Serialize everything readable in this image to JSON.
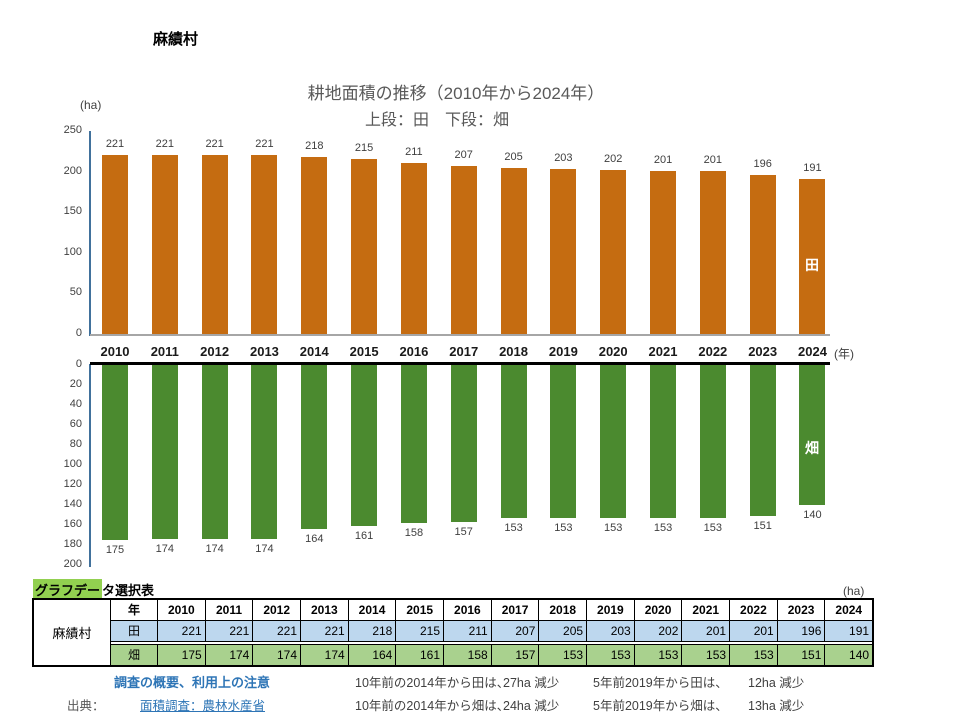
{
  "village_name": "麻績村",
  "chart": {
    "title": "耕地面積の推移（2010年から2024年）",
    "subtitle": "上段：田　下段：畑",
    "unit_label": "(ha)",
    "year_axis_label": "(年)"
  },
  "chart_data": {
    "type": "bar",
    "title": "耕地面積の推移（2010年から2024年）",
    "xlabel": "(年)",
    "ylabel": "(ha)",
    "categories": [
      "2010",
      "2011",
      "2012",
      "2013",
      "2014",
      "2015",
      "2016",
      "2017",
      "2018",
      "2019",
      "2020",
      "2021",
      "2022",
      "2023",
      "2024"
    ],
    "series": [
      {
        "name": "田",
        "values": [
          221,
          221,
          221,
          221,
          218,
          215,
          211,
          207,
          205,
          203,
          202,
          201,
          201,
          196,
          191
        ],
        "color": "#C56C11",
        "axis": {
          "ticks": [
            250,
            200,
            150,
            100,
            50,
            0
          ],
          "max": 250,
          "inverted": false
        }
      },
      {
        "name": "畑",
        "values": [
          175,
          174,
          174,
          174,
          164,
          161,
          158,
          157,
          153,
          153,
          153,
          153,
          153,
          151,
          140
        ],
        "color": "#4B8A2F",
        "axis": {
          "ticks": [
            0,
            20,
            40,
            60,
            80,
            100,
            120,
            140,
            160,
            180,
            200
          ],
          "max": 200,
          "inverted": true
        }
      }
    ],
    "legend_position": "in-bar-last",
    "grid": false
  },
  "table": {
    "caption_highlight": "グラフデー",
    "caption_rest": "タ選択表",
    "unit": "(ha)",
    "village": "麻績村",
    "col_header": "年",
    "years": [
      "2010",
      "2011",
      "2012",
      "2013",
      "2014",
      "2015",
      "2016",
      "2017",
      "2018",
      "2019",
      "2020",
      "2021",
      "2022",
      "2023",
      "2024"
    ],
    "rows": [
      {
        "label": "田",
        "values": [
          221,
          221,
          221,
          221,
          218,
          215,
          211,
          207,
          205,
          203,
          202,
          201,
          201,
          196,
          191
        ],
        "bg": "#BDD7EE"
      },
      {
        "label": "畑",
        "values": [
          175,
          174,
          174,
          174,
          164,
          161,
          158,
          157,
          153,
          153,
          153,
          153,
          153,
          151,
          140
        ],
        "bg": "#A9D18E"
      }
    ]
  },
  "footer": {
    "survey_link": "調査の概要、利用上の注意",
    "source_label": "出典：",
    "source_link": "面積調査：農林水産省",
    "notes": [
      [
        "10年前の2014年から田は、",
        "27ha 減少",
        "5年前2019年から田は、",
        "12ha 減少"
      ],
      [
        "10年前の2014年から畑は、",
        "24ha 減少",
        "5年前2019年から畑は、",
        "13ha 減少"
      ]
    ]
  },
  "colors": {
    "paddy_bar": "#C56C11",
    "field_bar": "#4B8A2F",
    "axis_line": "#41719C",
    "baseline_gray": "#A6A6A6",
    "baseline_black": "#000000",
    "link_blue": "#2E75B6",
    "title_gray": "#595959",
    "table_blue": "#BDD7EE",
    "table_green": "#A9D18E",
    "caption_highlight_bg": "#92D050"
  }
}
